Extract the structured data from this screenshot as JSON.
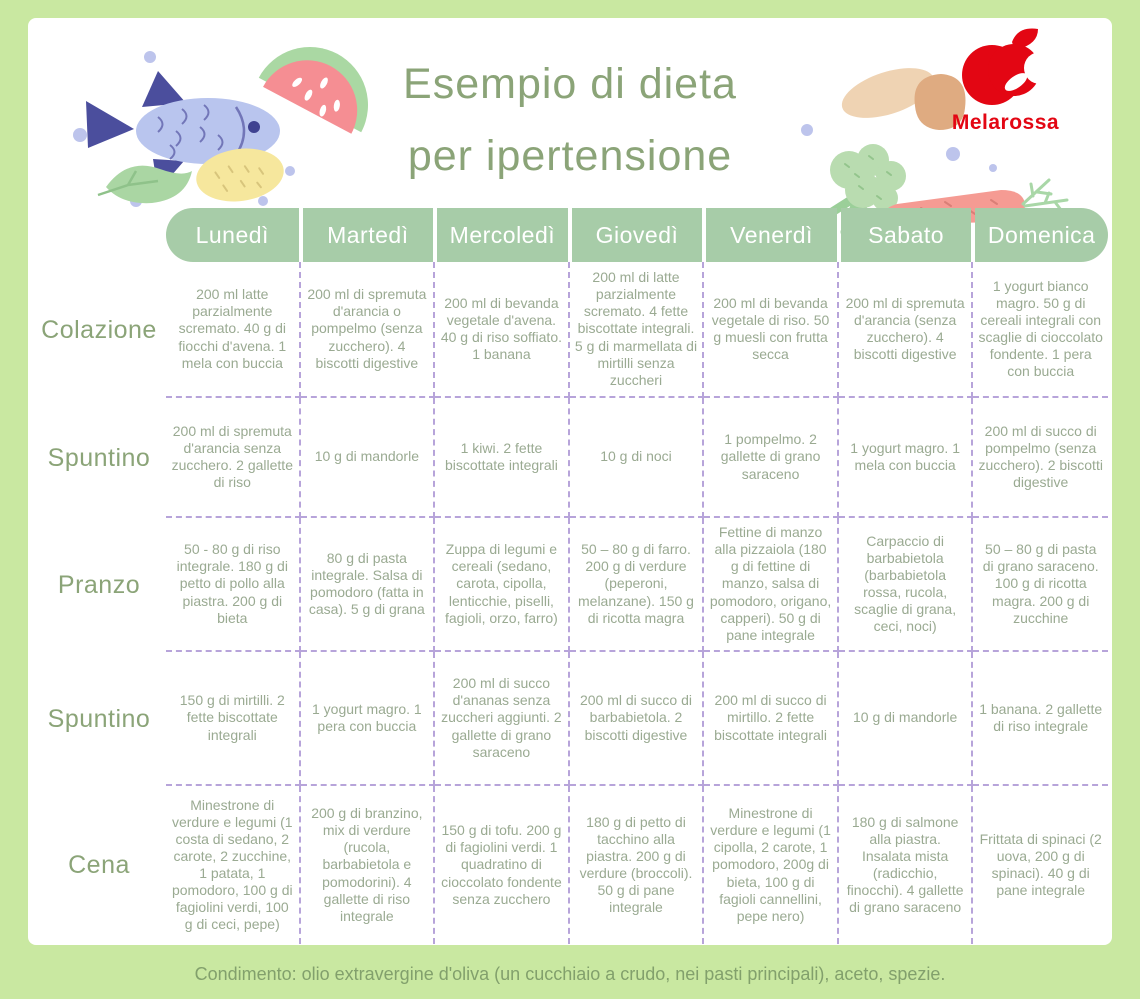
{
  "title": {
    "line1": "Esempio di dieta",
    "line2": "per ipertensione"
  },
  "logo": {
    "brand": "Melarossa"
  },
  "table": {
    "day_headers": [
      "Lunedì",
      "Martedì",
      "Mercoledì",
      "Giovedì",
      "Venerdì",
      "Sabato",
      "Domenica"
    ],
    "rows": [
      {
        "label": "Colazione",
        "cells": [
          "200 ml latte parzialmente scremato. 40 g di fiocchi d'avena. 1 mela con buccia",
          "200 ml di spremuta d'arancia o pompelmo (senza zucchero). 4 biscotti digestive",
          "200 ml di bevanda vegetale d'avena. 40 g di riso soffiato. 1 banana",
          "200 ml di latte parzialmente scremato. 4 fette biscottate integrali. 5 g di marmellata di mirtilli senza zuccheri",
          "200 ml di bevanda vegetale di riso. 50 g muesli con frutta secca",
          "200 ml di spremuta d'arancia (senza zucchero). 4 biscotti digestive",
          "1 yogurt bianco magro. 50 g di cereali integrali con scaglie di cioccolato fondente. 1 pera con buccia"
        ]
      },
      {
        "label": "Spuntino",
        "cells": [
          "200 ml di spremuta d'arancia senza zucchero. 2 gallette di riso",
          "10 g di mandorle",
          "1 kiwi. 2 fette biscottate integrali",
          "10 g di noci",
          "1 pompelmo. 2 gallette di grano saraceno",
          "1 yogurt magro. 1 mela con buccia",
          "200 ml di succo di pompelmo (senza zucchero). 2 biscotti digestive"
        ]
      },
      {
        "label": "Pranzo",
        "cells": [
          "50 - 80 g di riso integrale. 180 g di petto di pollo alla piastra. 200 g di bieta",
          "80 g di pasta integrale. Salsa di pomodoro (fatta in casa). 5 g di grana",
          "Zuppa di legumi e cereali (sedano, carota, cipolla, lenticchie, piselli, fagioli, orzo, farro)",
          "50 – 80 g di farro. 200 g di verdure (peperoni, melanzane). 150 g di ricotta magra",
          "Fettine di manzo alla pizzaiola (180 g di fettine di manzo, salsa di pomodoro, origano, capperi). 50 g di pane integrale",
          "Carpaccio di barbabietola (barbabietola rossa, rucola, scaglie di grana, ceci, noci)",
          "50 – 80 g di pasta di grano saraceno. 100 g di ricotta magra. 200 g di zucchine"
        ]
      },
      {
        "label": "Spuntino",
        "cells": [
          "150 g di mirtilli. 2 fette biscottate integrali",
          "1 yogurt magro. 1 pera con buccia",
          "200 ml di succo d'ananas senza zuccheri aggiunti. 2 gallette di grano saraceno",
          "200 ml di succo di barbabietola. 2 biscotti digestive",
          "200 ml di succo di mirtillo. 2 fette biscottate integrali",
          "10 g di mandorle",
          "1 banana. 2 gallette di riso integrale"
        ]
      },
      {
        "label": "Cena",
        "cells": [
          "Minestrone di verdure e legumi (1 costa di sedano, 2 carote, 2 zucchine, 1 patata, 1 pomodoro, 100 g di fagiolini verdi, 100 g di ceci, pepe)",
          "200 g di branzino, mix di verdure (rucola, barbabietola e pomodorini). 4 gallette di riso integrale",
          "150 g di tofu. 200 g di fagiolini verdi. 1 quadratino di cioccolato fondente senza zucchero",
          "180 g di petto di tacchino alla piastra. 200 g di verdure (broccoli). 50 g di pane integrale",
          "Minestrone di verdure e legumi (1 cipolla, 2 carote, 1 pomodoro, 200g di bieta, 100 g di fagioli cannellini, pepe nero)",
          "180 g di salmone alla piastra. Insalata mista (radicchio, finocchi). 4 gallette di grano saraceno",
          "Frittata di spinaci (2 uova, 200 g di spinaci). 40 g di pane integrale"
        ]
      }
    ]
  },
  "footer": {
    "note": "Condimento: olio extravergine d'oliva (un cucchiaio a crudo, nei pasti principali), aceto, spezie."
  },
  "colors": {
    "brand_red": "#e30613",
    "frame_green": "#c9e8a1",
    "header_green": "#a7cca8",
    "title_green": "#8ba478",
    "cell_text_green": "#9aaa92",
    "divider_lavender": "#b7a4da"
  }
}
